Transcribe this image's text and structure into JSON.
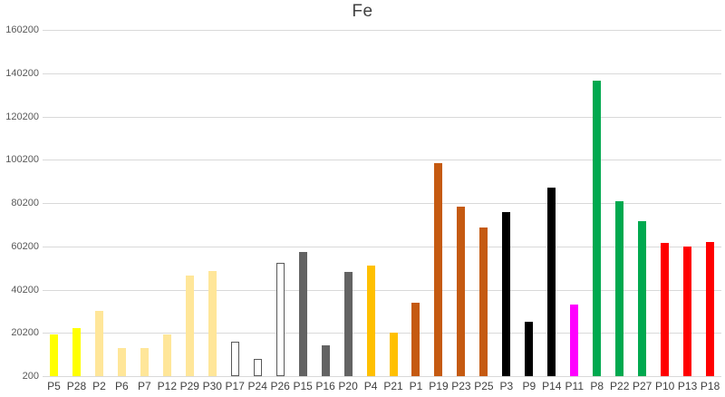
{
  "title": "Fe",
  "chart_data": {
    "type": "bar",
    "title": "Fe",
    "xlabel": "",
    "ylabel": "",
    "legend": "none",
    "grid": true,
    "ylim": [
      200,
      160200
    ],
    "ytick_interval": 20000,
    "yticks": [
      160200,
      140200,
      120200,
      100200,
      80200,
      60200,
      40200,
      20200,
      200
    ],
    "categories": [
      "P5",
      "P28",
      "P2",
      "P6",
      "P7",
      "P12",
      "P29",
      "P30",
      "P17",
      "P24",
      "P26",
      "P15",
      "P16",
      "P20",
      "P4",
      "P21",
      "P1",
      "P19",
      "P23",
      "P25",
      "P3",
      "P9",
      "P14",
      "P11",
      "P8",
      "P22",
      "P27",
      "P10",
      "P13",
      "P18"
    ],
    "values": [
      19500,
      22300,
      30200,
      13300,
      13400,
      19300,
      46800,
      48700,
      16000,
      8000,
      52400,
      57700,
      14500,
      48500,
      51500,
      20300,
      34000,
      98500,
      78400,
      69000,
      76000,
      25300,
      87400,
      33400,
      136700,
      81100,
      72000,
      62000,
      60000,
      62200
    ],
    "bar_colors": [
      "#ffff00",
      "#ffff00",
      "#ffe699",
      "#ffe699",
      "#ffe699",
      "#ffe699",
      "#ffe699",
      "#ffe699",
      "#ffffff",
      "#ffffff",
      "#ffffff",
      "#636363",
      "#636363",
      "#636363",
      "#ffc000",
      "#ffc000",
      "#c55a11",
      "#c55a11",
      "#c55a11",
      "#c55a11",
      "#000000",
      "#000000",
      "#000000",
      "#ff00ff",
      "#00a94f",
      "#00a94f",
      "#00a94f",
      "#ff0000",
      "#ff0000",
      "#ff0000"
    ],
    "bar_border_colors": [
      null,
      null,
      null,
      null,
      null,
      null,
      null,
      null,
      "#595959",
      "#595959",
      "#595959",
      null,
      null,
      null,
      null,
      null,
      null,
      null,
      null,
      null,
      null,
      null,
      null,
      null,
      null,
      null,
      null,
      null,
      null,
      null
    ]
  },
  "style": {
    "gridline_color": "#d9d9d9",
    "title_color": "#404040",
    "tick_label_color": "#595959",
    "category_label_color": "#404040",
    "background_color": "#ffffff"
  }
}
